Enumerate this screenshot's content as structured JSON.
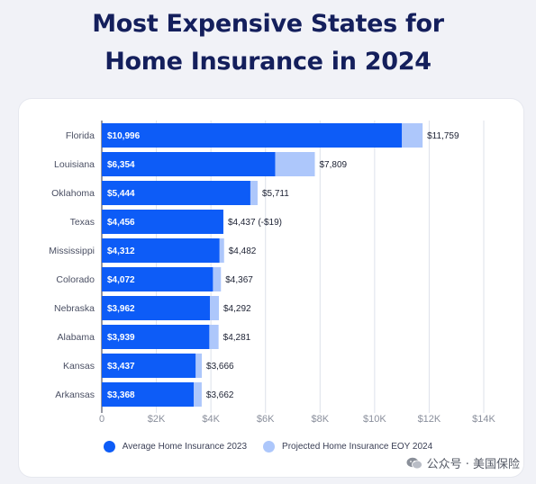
{
  "page": {
    "title_line1": "Most Expensive States for",
    "title_line2": "Home Insurance in 2024",
    "watermark": "公众号 · 美国保险",
    "watermark_icon": "wechat-icon"
  },
  "colors": {
    "avg_2023": "#0d5cf7",
    "projected_2024": "#adc7fb",
    "title": "#141f5c",
    "grid": "#dde1ea"
  },
  "chart_data": {
    "type": "bar",
    "orientation": "horizontal",
    "title": "Most Expensive States for Home Insurance in 2024",
    "categories": [
      "Florida",
      "Louisiana",
      "Oklahoma",
      "Texas",
      "Mississippi",
      "Colorado",
      "Nebraska",
      "Alabama",
      "Kansas",
      "Arkansas"
    ],
    "series": [
      {
        "name": "Average Home Insurance 2023",
        "values": [
          10996,
          6354,
          5444,
          4456,
          4312,
          4072,
          3962,
          3939,
          3437,
          3368
        ],
        "labels": [
          "$10,996",
          "$6,354",
          "$5,444",
          "$4,456",
          "$4,312",
          "$4,072",
          "$3,962",
          "$3,939",
          "$3,437",
          "$3,368"
        ]
      },
      {
        "name": "Projected Home Insurance EOY 2024",
        "values": [
          11759,
          7809,
          5711,
          4437,
          4482,
          4367,
          4292,
          4281,
          3666,
          3662
        ],
        "labels": [
          "$11,759",
          "$7,809",
          "$5,711",
          "$4,437 (-$19)",
          "$4,482",
          "$4,367",
          "$4,292",
          "$4,281",
          "$3,666",
          "$3,662"
        ]
      }
    ],
    "xlim": [
      0,
      14000
    ],
    "xticks": [
      0,
      2000,
      4000,
      6000,
      8000,
      10000,
      12000,
      14000
    ],
    "xtick_labels": [
      "0",
      "$2K",
      "$4K",
      "$6K",
      "$8K",
      "$10K",
      "$12K",
      "$14K"
    ],
    "grid": true,
    "legend_position": "bottom-center"
  }
}
